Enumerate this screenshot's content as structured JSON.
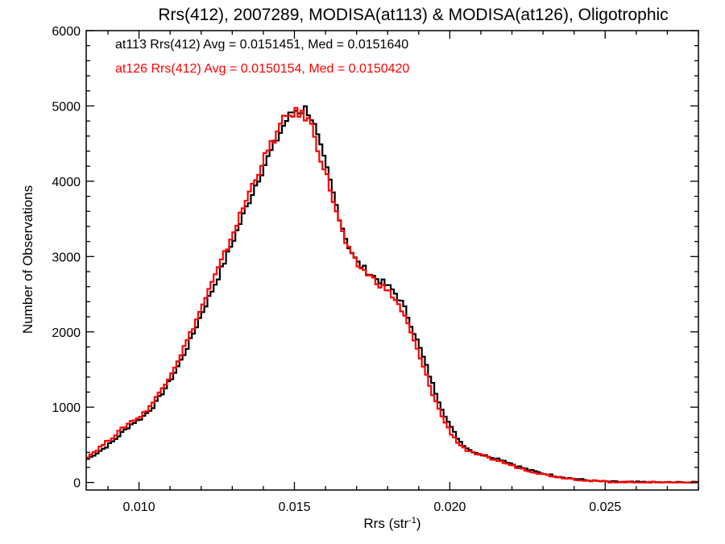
{
  "chart_data": {
    "type": "histogram-step",
    "title": "Rrs(412), 2007289, MODISA(at113) & MODISA(at126), Oligotrophic",
    "xlabel_main": "Rrs (str",
    "xlabel_exp": "-1",
    "xlabel_close": ")",
    "ylabel": "Number of Observations",
    "xlim": [
      0.0083,
      0.028
    ],
    "ylim": [
      -100,
      6000
    ],
    "x_ticks": [
      0.01,
      0.015,
      0.02,
      0.025
    ],
    "x_tick_labels": [
      "0.010",
      "0.015",
      "0.020",
      "0.025"
    ],
    "y_ticks": [
      0,
      1000,
      2000,
      3000,
      4000,
      5000,
      6000
    ],
    "y_tick_labels": [
      "0",
      "1000",
      "2000",
      "3000",
      "4000",
      "5000",
      "6000"
    ],
    "legend_placement": "top-left inside",
    "series": [
      {
        "name": "at113",
        "legend": "at113 Rrs(412) Avg = 0.0151451, Med = 0.0151640",
        "color": "#000000",
        "points": [
          [
            0.0083,
            300
          ],
          [
            0.0086,
            380
          ],
          [
            0.0089,
            460
          ],
          [
            0.0092,
            560
          ],
          [
            0.0095,
            680
          ],
          [
            0.0098,
            790
          ],
          [
            0.01,
            830
          ],
          [
            0.0102,
            900
          ],
          [
            0.0105,
            1030
          ],
          [
            0.0108,
            1220
          ],
          [
            0.0111,
            1420
          ],
          [
            0.0114,
            1660
          ],
          [
            0.0117,
            1930
          ],
          [
            0.012,
            2230
          ],
          [
            0.0123,
            2500
          ],
          [
            0.0126,
            2780
          ],
          [
            0.0129,
            3080
          ],
          [
            0.0132,
            3390
          ],
          [
            0.0135,
            3700
          ],
          [
            0.0138,
            4000
          ],
          [
            0.0141,
            4270
          ],
          [
            0.0144,
            4520
          ],
          [
            0.0147,
            4780
          ],
          [
            0.015,
            4950
          ],
          [
            0.0152,
            4930
          ],
          [
            0.0154,
            4970
          ],
          [
            0.0156,
            4800
          ],
          [
            0.0158,
            4500
          ],
          [
            0.0161,
            4070
          ],
          [
            0.0164,
            3600
          ],
          [
            0.0167,
            3180
          ],
          [
            0.017,
            2930
          ],
          [
            0.0173,
            2820
          ],
          [
            0.0176,
            2720
          ],
          [
            0.0179,
            2640
          ],
          [
            0.0182,
            2540
          ],
          [
            0.0185,
            2360
          ],
          [
            0.0188,
            2050
          ],
          [
            0.0191,
            1720
          ],
          [
            0.0194,
            1360
          ],
          [
            0.0197,
            1030
          ],
          [
            0.02,
            760
          ],
          [
            0.0203,
            560
          ],
          [
            0.0206,
            440
          ],
          [
            0.021,
            370
          ],
          [
            0.0213,
            340
          ],
          [
            0.0217,
            300
          ],
          [
            0.0221,
            230
          ],
          [
            0.0225,
            170
          ],
          [
            0.0229,
            130
          ],
          [
            0.0233,
            95
          ],
          [
            0.0237,
            65
          ],
          [
            0.0241,
            45
          ],
          [
            0.0245,
            25
          ],
          [
            0.025,
            12
          ],
          [
            0.0256,
            5
          ],
          [
            0.0265,
            2
          ],
          [
            0.028,
            0
          ]
        ]
      },
      {
        "name": "at126",
        "legend": "at126 Rrs(412) Avg = 0.0150154, Med = 0.0150420",
        "color": "#ff0000",
        "points": [
          [
            0.0083,
            330
          ],
          [
            0.0086,
            420
          ],
          [
            0.0089,
            520
          ],
          [
            0.0092,
            620
          ],
          [
            0.0095,
            730
          ],
          [
            0.0098,
            830
          ],
          [
            0.01,
            860
          ],
          [
            0.0102,
            940
          ],
          [
            0.0105,
            1090
          ],
          [
            0.0108,
            1290
          ],
          [
            0.0111,
            1500
          ],
          [
            0.0114,
            1750
          ],
          [
            0.0117,
            2020
          ],
          [
            0.012,
            2310
          ],
          [
            0.0123,
            2600
          ],
          [
            0.0126,
            2880
          ],
          [
            0.0129,
            3180
          ],
          [
            0.0132,
            3490
          ],
          [
            0.0135,
            3800
          ],
          [
            0.0138,
            4100
          ],
          [
            0.0141,
            4360
          ],
          [
            0.0144,
            4610
          ],
          [
            0.0147,
            4840
          ],
          [
            0.015,
            4920
          ],
          [
            0.0152,
            4880
          ],
          [
            0.0154,
            4860
          ],
          [
            0.0156,
            4680
          ],
          [
            0.0158,
            4380
          ],
          [
            0.0161,
            3980
          ],
          [
            0.0164,
            3520
          ],
          [
            0.0167,
            3120
          ],
          [
            0.017,
            2900
          ],
          [
            0.0173,
            2790
          ],
          [
            0.0176,
            2680
          ],
          [
            0.0179,
            2580
          ],
          [
            0.0182,
            2460
          ],
          [
            0.0185,
            2250
          ],
          [
            0.0188,
            1930
          ],
          [
            0.0191,
            1590
          ],
          [
            0.0194,
            1230
          ],
          [
            0.0197,
            920
          ],
          [
            0.02,
            680
          ],
          [
            0.0203,
            510
          ],
          [
            0.0206,
            410
          ],
          [
            0.021,
            360
          ],
          [
            0.0213,
            320
          ],
          [
            0.0217,
            270
          ],
          [
            0.0221,
            210
          ],
          [
            0.0225,
            160
          ],
          [
            0.0229,
            120
          ],
          [
            0.0233,
            85
          ],
          [
            0.0237,
            60
          ],
          [
            0.0241,
            40
          ],
          [
            0.0245,
            22
          ],
          [
            0.025,
            10
          ],
          [
            0.0256,
            4
          ],
          [
            0.0265,
            1
          ],
          [
            0.028,
            0
          ]
        ]
      }
    ]
  }
}
